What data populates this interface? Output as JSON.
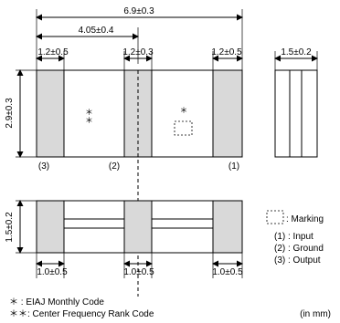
{
  "dimensions": {
    "overall_length": "6.9±0.3",
    "pitch": "4.05±0.4",
    "electrode_left_width": "1.2±0.5",
    "electrode_center_width": "1.2±0.3",
    "electrode_right_width": "1.2±0.5",
    "body_height": "2.9±0.3",
    "side_thickness": "1.5±0.2",
    "bottom_thickness": "1.5±0.2",
    "bottom_pad_left": "1.0±0.5",
    "bottom_pad_center": "1.0±0.5",
    "bottom_pad_right": "1.0±0.5"
  },
  "top_view": {
    "pin_left": "(3)",
    "pin_center": "(2)",
    "pin_right": "(1)",
    "rank_code_symbol": "＊＊",
    "monthly_code_symbol": "＊"
  },
  "legend": {
    "marking_label": ": Marking",
    "pins": [
      "(1) : Input",
      "(2) : Ground",
      "(3) : Output"
    ]
  },
  "footnotes": [
    "＊  : EIAJ Monthly Code",
    "＊＊: Center Frequency Rank Code"
  ],
  "unit_note": "(in mm)"
}
